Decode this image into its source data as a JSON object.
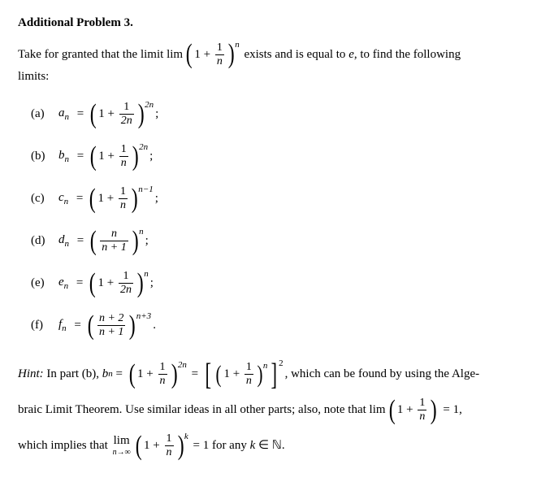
{
  "title": "Additional Problem 3.",
  "intro": {
    "before_lim": "Take for granted that the limit ",
    "lim_word": "lim",
    "paren_one": "1",
    "plus": "+",
    "frac_num": "1",
    "frac_den": "n",
    "exp": "n",
    "after": " exists and is equal to ",
    "e": "e",
    "after2": ", to find the following",
    "line2": "limits:"
  },
  "items": {
    "a": {
      "label": "(a)",
      "seq": "a",
      "sub": "n",
      "eq": " = ",
      "inner_left": "1",
      "plus": "+",
      "num": "1",
      "den": "2n",
      "exp": "2n",
      "tail": ";"
    },
    "b": {
      "label": "(b)",
      "seq": "b",
      "sub": "n",
      "eq": " = ",
      "inner_left": "1",
      "plus": "+",
      "num": "1",
      "den": "n",
      "exp": "2n",
      "tail": ";"
    },
    "c": {
      "label": "(c)",
      "seq": "c",
      "sub": "n",
      "eq": " = ",
      "inner_left": "1",
      "plus": "+",
      "num": "1",
      "den": "n",
      "exp": "n−1",
      "tail": ";"
    },
    "d": {
      "label": "(d)",
      "seq": "d",
      "sub": "n",
      "eq": " = ",
      "num": "n",
      "den": "n + 1",
      "exp": "n",
      "tail": ";"
    },
    "e": {
      "label": "(e)",
      "seq": "e",
      "sub": "n",
      "eq": " = ",
      "inner_left": "1",
      "plus": "+",
      "num": "1",
      "den": "2n",
      "exp": "n",
      "tail": ";"
    },
    "f": {
      "label": "(f)",
      "seq": "f",
      "sub": "n",
      "eq": " = ",
      "num": "n + 2",
      "den": "n + 1",
      "exp": "n+3",
      "tail": "."
    }
  },
  "hint": {
    "label": "Hint:",
    "t1": " In part (b), ",
    "bn_b": "b",
    "bn_n": "n",
    "eq": " = ",
    "left_one": "1",
    "left_plus": "+",
    "left_num": "1",
    "left_den": "n",
    "left_exp": "2n",
    "eq2": " = ",
    "inner_one": "1",
    "inner_plus": "+",
    "inner_num": "1",
    "inner_den": "n",
    "inner_exp": "n",
    "outer_exp": "2",
    "after1": ", which can be found by using the Alge-",
    "line2a": "braic Limit Theorem. Use similar ideas in all other parts; also, note that ",
    "lim2": "lim",
    "l2_one": "1",
    "l2_plus": "+",
    "l2_num": "1",
    "l2_den": "n",
    "l2_after": " = 1,",
    "line3a": "which implies that ",
    "lim3_top": "lim",
    "lim3_bot": "n→∞",
    "l3_one": "1",
    "l3_plus": "+",
    "l3_num": "1",
    "l3_den": "n",
    "l3_exp": "k",
    "l3_after": " = 1 for any ",
    "k": "k",
    "in": " ∈ ",
    "nat": "ℕ",
    "period": "."
  }
}
